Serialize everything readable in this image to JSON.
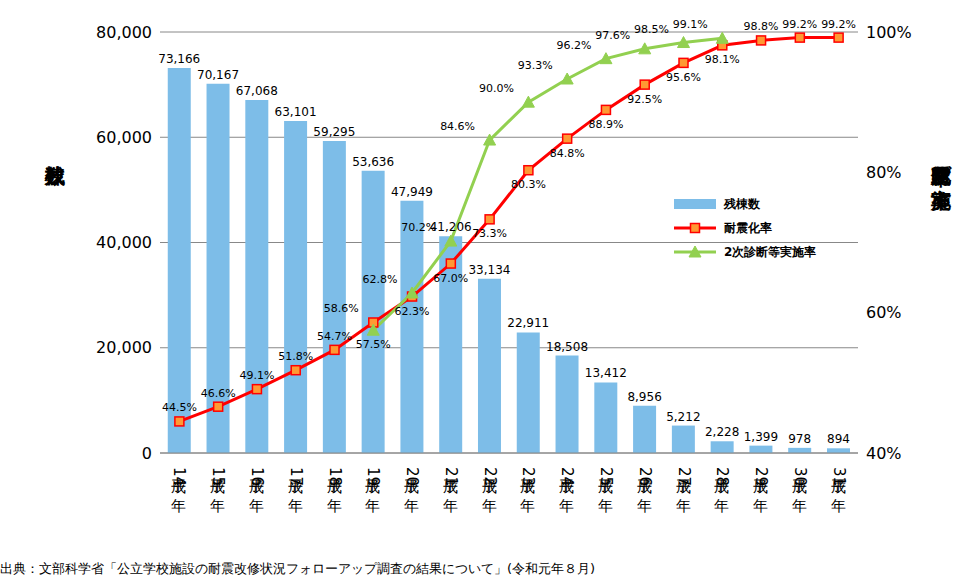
{
  "chart_data": {
    "type": "bar",
    "source": "出典：文部科学省「公立学校施設の耐震改修状況フォローアップ調査の結果について」(令和元年８月)",
    "y_label": "残棟数",
    "y2_label": "耐震化率及び実施率",
    "categories": [
      "平成14年",
      "平成15年",
      "平成16年",
      "平成17年",
      "平成18年",
      "平成19年",
      "平成20年",
      "平成21年",
      "平成22年",
      "平成23年",
      "平成24年",
      "平成25年",
      "平成26年",
      "平成27年",
      "平成28年",
      "平成29年",
      "平成30年",
      "平成31年"
    ],
    "ylim": [
      0,
      80000
    ],
    "yticks": [
      0,
      {
        "value": 20000,
        "label": "20,000"
      },
      {
        "value": 40000,
        "label": "40,000"
      },
      {
        "value": 60000,
        "label": "60,000"
      },
      {
        "value": 80000,
        "label": "80,000"
      }
    ],
    "y2lim": [
      40,
      100
    ],
    "y2ticks": [
      {
        "value": 40,
        "label": "40%"
      },
      {
        "value": 60,
        "label": "60%"
      },
      {
        "value": 80,
        "label": "80%"
      },
      {
        "value": 100,
        "label": "100%"
      }
    ],
    "grid": true,
    "data_labels": true,
    "legend": "right",
    "series": [
      {
        "name": "残棟数",
        "type": "bar",
        "color": "#7dbde8",
        "values": [
          73166,
          70167,
          67068,
          63101,
          59295,
          53636,
          47949,
          41206,
          33134,
          22911,
          18508,
          13412,
          8956,
          5212,
          2228,
          1399,
          978,
          894
        ],
        "value_labels": [
          "73,166",
          "70,167",
          "67,068",
          "63,101",
          "59,295",
          "53,636",
          "47,949",
          "41,206",
          "33,134",
          "22,911",
          "18,508",
          "13,412",
          "8,956",
          "5,212",
          "2,228",
          "1,399",
          "978",
          "894"
        ]
      },
      {
        "name": "耐震化率",
        "type": "line",
        "axis": "y2",
        "color": "#ff0000",
        "marker": "square",
        "line_style": "solid",
        "values": [
          44.5,
          46.6,
          49.1,
          51.8,
          54.7,
          58.6,
          62.3,
          67.0,
          73.3,
          80.3,
          84.8,
          88.9,
          92.5,
          95.6,
          98.1,
          98.8,
          99.2,
          99.2
        ],
        "value_labels": [
          "44.5%",
          "46.6%",
          "49.1%",
          "51.8%",
          "54.7%",
          "58.6%",
          "62.3%",
          "67.0%",
          "73.3%",
          "80.3%",
          "84.8%",
          "88.9%",
          "92.5%",
          "95.6%",
          "98.1%",
          "98.8%",
          "99.2%",
          "99.2%"
        ]
      },
      {
        "name": "2次診断等実施率",
        "type": "line",
        "axis": "y2",
        "color": "#92d050",
        "marker": "triangle",
        "line_style": "solid",
        "values": [
          null,
          null,
          null,
          null,
          null,
          57.5,
          62.8,
          70.2,
          84.6,
          90.0,
          93.3,
          96.2,
          97.6,
          98.5,
          99.1,
          null,
          null,
          null
        ],
        "value_labels": [
          null,
          null,
          null,
          null,
          null,
          "57.5%",
          "62.8%",
          "70.2%",
          "84.6%",
          "90.0%",
          "93.3%",
          "96.2%",
          "97.6%",
          "98.5%",
          "99.1%",
          null,
          null,
          null
        ]
      }
    ]
  }
}
